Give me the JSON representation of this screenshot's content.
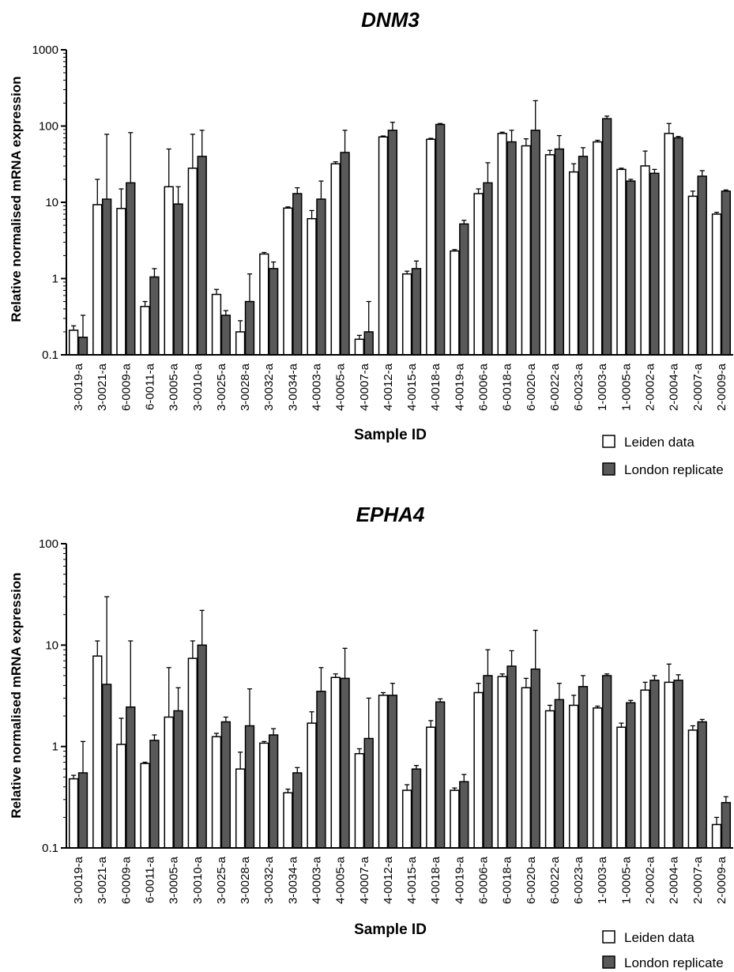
{
  "chart_data": [
    {
      "type": "bar",
      "title": "DNM3",
      "ylabel": "Relative normalised mRNA expression",
      "xlabel": "Sample ID",
      "yscale": "log",
      "ylim": [
        0.1,
        1000
      ],
      "yticks": [
        "0.1",
        "1",
        "10",
        "100",
        "1000"
      ],
      "error_bars": true,
      "legend_position": "bottom-right",
      "categories": [
        "3-0019-a",
        "3-0021-a",
        "6-0009-a",
        "6-0011-a",
        "3-0005-a",
        "3-0010-a",
        "3-0025-a",
        "3-0028-a",
        "3-0032-a",
        "3-0034-a",
        "4-0003-a",
        "4-0005-a",
        "4-0007-a",
        "4-0012-a",
        "4-0015-a",
        "4-0018-a",
        "4-0019-a",
        "6-0006-a",
        "6-0018-a",
        "6-0020-a",
        "6-0022-a",
        "6-0023-a",
        "1-0003-a",
        "1-0005-a",
        "2-0002-a",
        "2-0004-a",
        "2-0007-a",
        "2-0009-a"
      ],
      "series": [
        {
          "name": "Leiden data",
          "color": "#ffffff",
          "values": [
            0.21,
            9.3,
            8.3,
            0.43,
            16,
            28,
            0.62,
            0.2,
            2.1,
            8.4,
            6.1,
            32,
            0.16,
            72,
            1.15,
            67,
            2.3,
            13,
            80,
            55,
            42,
            25,
            62,
            27,
            30,
            80,
            12,
            7
          ],
          "error_upper": [
            0.24,
            20,
            15,
            0.5,
            50,
            78,
            0.72,
            0.28,
            2.2,
            8.7,
            7.8,
            34,
            0.18,
            74,
            1.25,
            69,
            2.4,
            15,
            83,
            68,
            48,
            32,
            65,
            28,
            47,
            108,
            14,
            7.4
          ]
        },
        {
          "name": "London replicate",
          "color": "#595959",
          "values": [
            0.17,
            11,
            18,
            1.05,
            9.5,
            40,
            0.33,
            0.5,
            1.35,
            13,
            11,
            45,
            0.2,
            88,
            1.35,
            105,
            5.2,
            18,
            62,
            88,
            50,
            40,
            125,
            19,
            24,
            70,
            22,
            14
          ],
          "error_upper": [
            0.33,
            78,
            82,
            1.35,
            16,
            88,
            0.38,
            1.15,
            1.65,
            15.5,
            19,
            88,
            0.5,
            112,
            1.7,
            108,
            5.8,
            33,
            88,
            215,
            75,
            52,
            135,
            20,
            27,
            73,
            26,
            14.5
          ]
        }
      ]
    },
    {
      "type": "bar",
      "title": "EPHA4",
      "ylabel": "Relative normalised mRNA expression",
      "xlabel": "Sample ID",
      "yscale": "log",
      "ylim": [
        0.1,
        100
      ],
      "yticks": [
        "0.1",
        "1",
        "10",
        "100"
      ],
      "error_bars": true,
      "legend_position": "bottom-right",
      "categories": [
        "3-0019-a",
        "3-0021-a",
        "6-0009-a",
        "6-0011-a",
        "3-0005-a",
        "3-0010-a",
        "3-0025-a",
        "3-0028-a",
        "3-0032-a",
        "3-0034-a",
        "4-0003-a",
        "4-0005-a",
        "4-0007-a",
        "4-0012-a",
        "4-0015-a",
        "4-0018-a",
        "4-0019-a",
        "6-0006-a",
        "6-0018-a",
        "6-0020-a",
        "6-0022-a",
        "6-0023-a",
        "1-0003-a",
        "1-0005-a",
        "2-0002-a",
        "2-0004-a",
        "2-0007-a",
        "2-0009-a"
      ],
      "series": [
        {
          "name": "Leiden data",
          "color": "#ffffff",
          "values": [
            0.48,
            7.8,
            1.05,
            0.68,
            1.95,
            7.4,
            1.25,
            0.6,
            1.08,
            0.35,
            1.7,
            4.8,
            0.85,
            3.2,
            0.37,
            1.55,
            0.37,
            3.4,
            4.9,
            3.8,
            2.25,
            2.55,
            2.4,
            1.55,
            3.6,
            4.3,
            1.45,
            0.17
          ],
          "error_upper": [
            0.52,
            11,
            1.9,
            0.7,
            6,
            11,
            1.35,
            0.88,
            1.12,
            0.38,
            2.2,
            5.2,
            0.95,
            3.4,
            0.42,
            1.8,
            0.39,
            4.2,
            5.2,
            4.7,
            2.55,
            3.2,
            2.5,
            1.7,
            4.3,
            6.5,
            1.6,
            0.2
          ]
        },
        {
          "name": "London replicate",
          "color": "#595959",
          "values": [
            0.55,
            4.1,
            2.45,
            1.15,
            2.25,
            10,
            1.75,
            1.6,
            1.3,
            0.55,
            3.5,
            4.7,
            1.2,
            3.2,
            0.6,
            2.75,
            0.45,
            5,
            6.2,
            5.8,
            2.9,
            3.9,
            5,
            2.7,
            4.5,
            4.5,
            1.75,
            0.28
          ],
          "error_upper": [
            1.12,
            30,
            11,
            1.3,
            3.8,
            22,
            1.95,
            3.7,
            1.5,
            0.62,
            6,
            9.3,
            3,
            4.2,
            0.65,
            2.95,
            0.53,
            9,
            8.8,
            14,
            4.2,
            5,
            5.2,
            2.85,
            5,
            5.1,
            1.85,
            0.32
          ]
        }
      ]
    }
  ]
}
